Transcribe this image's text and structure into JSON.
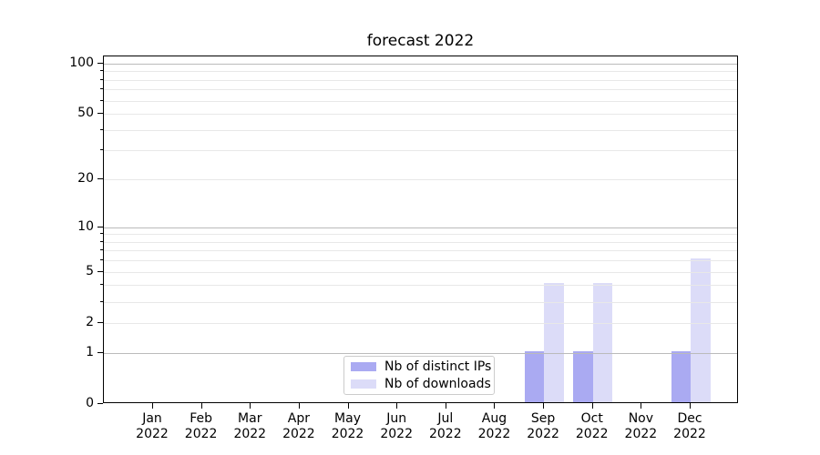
{
  "chart_data": {
    "type": "bar",
    "title": "forecast 2022",
    "categories": [
      "Jan 2022",
      "Feb 2022",
      "Mar 2022",
      "Apr 2022",
      "May 2022",
      "Jun 2022",
      "Jul 2022",
      "Aug 2022",
      "Sep 2022",
      "Oct 2022",
      "Nov 2022",
      "Dec 2022"
    ],
    "series": [
      {
        "name": "Nb of distinct IPs",
        "color": "#aaaaf2",
        "values": [
          0,
          0,
          0,
          0,
          0,
          0,
          0,
          0,
          1,
          1,
          0,
          1
        ]
      },
      {
        "name": "Nb of downloads",
        "color": "#dcdcf8",
        "values": [
          0,
          0,
          0,
          0,
          0,
          0,
          0,
          0,
          4,
          4,
          0,
          6
        ]
      }
    ],
    "xlabel": "",
    "ylabel": "",
    "yscale": "log1p",
    "ylim": [
      0,
      110
    ],
    "yticks": [
      0,
      1,
      2,
      5,
      10,
      20,
      50,
      100
    ],
    "y_minor_ticks": [
      3,
      4,
      6,
      7,
      8,
      9,
      30,
      40,
      60,
      70,
      80,
      90
    ],
    "major_grid_values": [
      1,
      10,
      100
    ],
    "minor_grid_values": [
      2,
      3,
      4,
      5,
      6,
      7,
      8,
      9,
      20,
      30,
      40,
      50,
      60,
      70,
      80,
      90
    ],
    "grid": true,
    "legend_position": "lower center",
    "colors": {
      "major_grid": "#bbbbbb",
      "minor_grid": "#e8e8e8",
      "spine": "#000000",
      "text": "#000000",
      "background": "#ffffff"
    }
  }
}
